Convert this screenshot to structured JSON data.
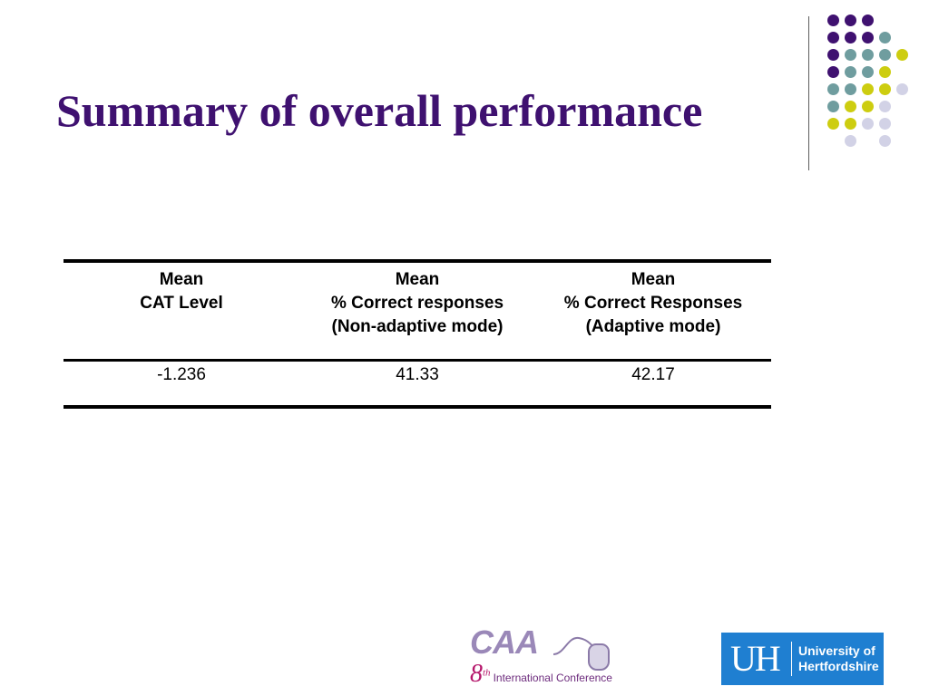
{
  "slide": {
    "title": "Summary of overall performance"
  },
  "decoration": {
    "dot_colors": {
      "purple": "#3f1170",
      "teal": "#6f9d9f",
      "lime": "#cdcd10",
      "lavender": "#d2d2e6"
    }
  },
  "table": {
    "headers": [
      {
        "lines": [
          "Mean",
          "CAT Level"
        ]
      },
      {
        "lines": [
          "Mean",
          "% Correct responses",
          "(Non-adaptive mode)"
        ]
      },
      {
        "lines": [
          "Mean",
          "% Correct Responses",
          "(Adaptive mode)"
        ]
      }
    ],
    "rows": [
      [
        "-1.236",
        "41.33",
        "42.17"
      ]
    ]
  },
  "logos": {
    "caa": {
      "wordmark": "CAA",
      "edition_number": "8",
      "edition_suffix": "th",
      "conference": "International Conference"
    },
    "uh": {
      "monogram": "UH",
      "line1": "University of",
      "line2": "Hertfordshire",
      "color": "#1f7fd1"
    }
  }
}
